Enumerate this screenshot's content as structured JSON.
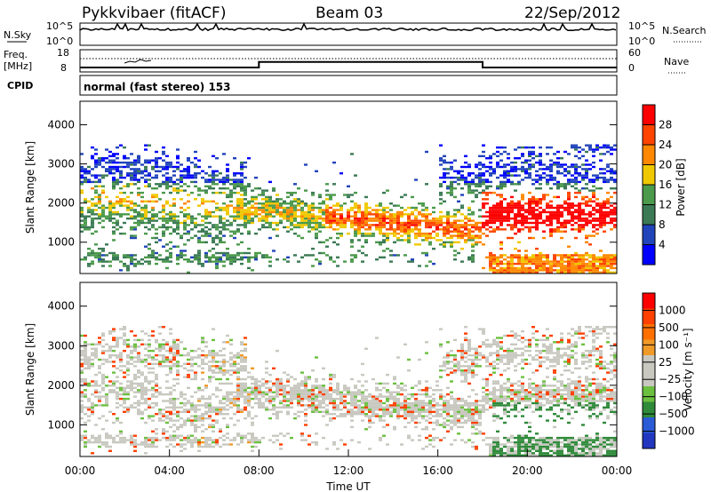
{
  "header": {
    "station": "Pykkvibaer (fitACF)",
    "beam": "Beam 03",
    "date": "22/Sep/2012"
  },
  "nsky_panel": {
    "left_label": "N.Sky",
    "right_label": "N.Search",
    "left_ticks": [
      "10^5",
      "10^0"
    ],
    "right_ticks": [
      "10^5",
      "10^0"
    ]
  },
  "freq_panel": {
    "left_label_1": "Freq.",
    "left_label_2": "[MHz]",
    "right_label": "Nave",
    "left_ticks": [
      "18",
      "8"
    ],
    "right_ticks": [
      "60",
      "0"
    ]
  },
  "cpid": {
    "label": "CPID",
    "mode": "normal (fast stereo) 153"
  },
  "colors": {
    "power": [
      "#0000ff",
      "#2244bb",
      "#3b7a55",
      "#4c9a4c",
      "#f0c800",
      "#ff8800",
      "#ff4400",
      "#ff0000"
    ],
    "velocity": [
      "#2236c0",
      "#2a5ad6",
      "#2f8a3a",
      "#6cc040",
      "#c8c8c0",
      "#c8c8c0",
      "#f09a28",
      "#ff7000",
      "#ff4000",
      "#ff0000"
    ]
  },
  "chart_data": [
    {
      "type": "heatmap",
      "name": "power",
      "ylabel": "Slant Range [km]",
      "yticks": [
        1000,
        2000,
        3000,
        4000
      ],
      "ylim": [
        200,
        4600
      ],
      "xlim": [
        0,
        24
      ],
      "colorbar_label": "Power [dB]",
      "colorbar_ticks": [
        4,
        8,
        12,
        16,
        20,
        24,
        28
      ],
      "colorbar_range": [
        0,
        32
      ]
    },
    {
      "type": "heatmap",
      "name": "velocity",
      "xlabel": "Time UT",
      "xticks": [
        "00:00",
        "04:00",
        "08:00",
        "12:00",
        "16:00",
        "20:00",
        "00:00"
      ],
      "ylabel": "Slant Range [km]",
      "yticks": [
        1000,
        2000,
        3000,
        4000
      ],
      "ylim": [
        200,
        4600
      ],
      "xlim": [
        0,
        24
      ],
      "colorbar_label": "Velocity [m s⁻¹]",
      "colorbar_ticks": [
        "1000",
        "500",
        "100",
        "25",
        "−25",
        "−100",
        "−500",
        "−1000"
      ]
    },
    {
      "type": "line",
      "name": "frequency",
      "x": [
        0,
        8,
        8,
        18,
        18,
        24
      ],
      "y": [
        10,
        10,
        12.5,
        12.5,
        10,
        10
      ],
      "ylim": [
        8,
        18
      ]
    }
  ]
}
